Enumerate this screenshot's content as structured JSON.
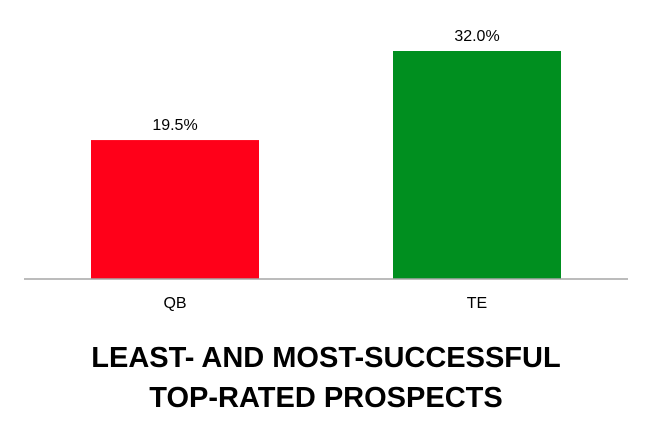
{
  "chart_data": {
    "type": "bar",
    "categories": [
      "QB",
      "TE"
    ],
    "values": [
      19.5,
      32.0
    ],
    "data_labels": [
      "19.5%",
      "32.0%"
    ],
    "bar_colors": [
      "#ff0019",
      "#008f1f"
    ],
    "title_lines": [
      "LEAST- AND MOST-SUCCESSFUL",
      "TOP-RATED PROSPECTS"
    ],
    "xlabel": "",
    "ylabel": "",
    "ylim": [
      0,
      32.0
    ],
    "grid": false,
    "legend": "none"
  }
}
